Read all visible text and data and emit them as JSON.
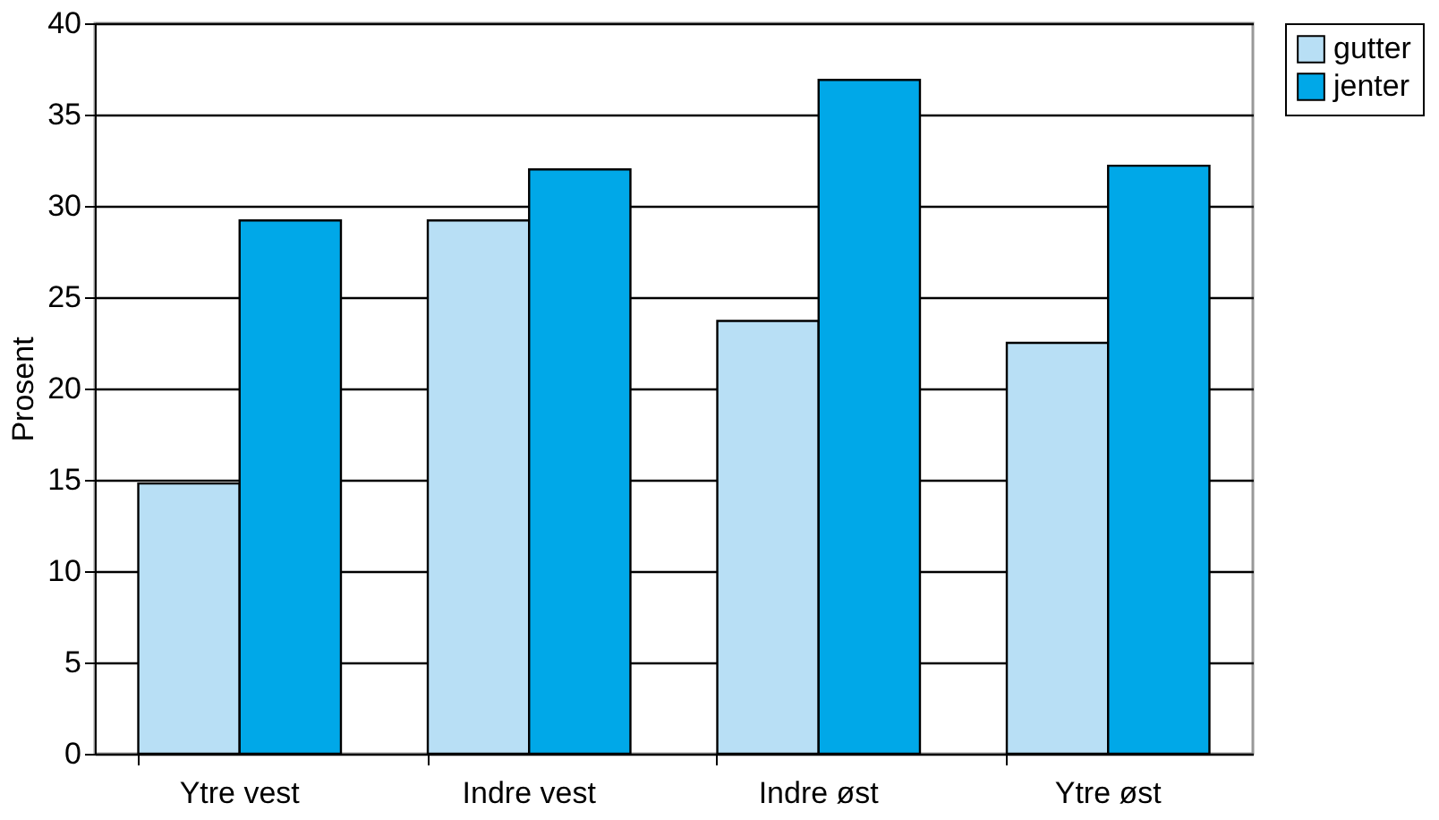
{
  "chart_data": {
    "type": "bar",
    "ylabel": "Prosent",
    "categories": [
      "Ytre vest",
      "Indre vest",
      "Indre øst",
      "Ytre øst"
    ],
    "series": [
      {
        "name": "gutter",
        "color": "#b8dff5",
        "values": [
          14.8,
          29.2,
          23.7,
          22.5
        ]
      },
      {
        "name": "jenter",
        "color": "#00a8e8",
        "values": [
          29.2,
          32.0,
          36.9,
          32.2
        ]
      }
    ],
    "ylim": [
      0,
      40
    ],
    "yticks": [
      0,
      5,
      10,
      15,
      20,
      25,
      30,
      35,
      40
    ],
    "grid": "y",
    "legend": "right"
  }
}
